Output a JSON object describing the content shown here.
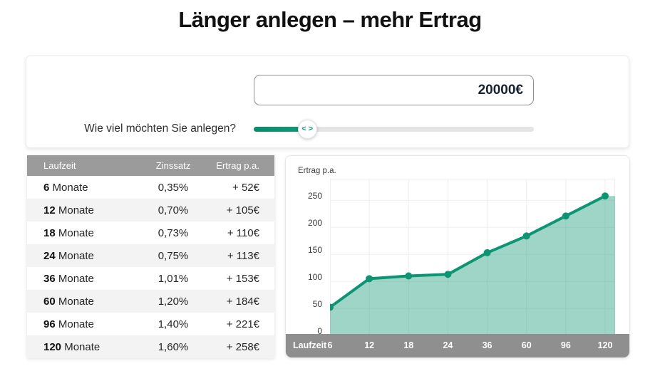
{
  "title": "Länger anlegen – mehr Ertrag",
  "accent_color": "#0d9573",
  "investment": {
    "amount_value": "20000€",
    "question_label": "Wie viel möchten Sie anlegen?",
    "slider": {
      "fill_percent": 18,
      "thumb_percent": 19,
      "left_glyph": "<",
      "right_glyph": ">"
    }
  },
  "table": {
    "headers": [
      "Laufzeit",
      "Zinssatz",
      "Ertrag p.a."
    ],
    "unit": "Monate",
    "rows": [
      {
        "months": "6",
        "zinssatz": "0,35%",
        "ertrag": "+ 52€"
      },
      {
        "months": "12",
        "zinssatz": "0,70%",
        "ertrag": "+ 105€"
      },
      {
        "months": "18",
        "zinssatz": "0,73%",
        "ertrag": "+ 110€"
      },
      {
        "months": "24",
        "zinssatz": "0,75%",
        "ertrag": "+ 113€"
      },
      {
        "months": "36",
        "zinssatz": "1,01%",
        "ertrag": "+ 153€"
      },
      {
        "months": "60",
        "zinssatz": "1,20%",
        "ertrag": "+ 184€"
      },
      {
        "months": "96",
        "zinssatz": "1,40%",
        "ertrag": "+ 221€"
      },
      {
        "months": "120",
        "zinssatz": "1,60%",
        "ertrag": "+ 258€"
      }
    ]
  },
  "chart_data": {
    "type": "area",
    "title": "Ertrag p.a.",
    "xlabel": "Laufzeit",
    "ylabel": "Ertrag p.a.",
    "categories": [
      6,
      12,
      18,
      24,
      36,
      60,
      96,
      120
    ],
    "values": [
      52,
      105,
      110,
      113,
      153,
      184,
      221,
      258
    ],
    "yticks": [
      0,
      50,
      100,
      150,
      200,
      250
    ],
    "ylim": [
      0,
      290
    ],
    "grid": true,
    "legend": "none",
    "line_color": "#0d9573",
    "fill_color": "rgba(13,149,115,0.40)",
    "grid_color": "#efefef",
    "axis_bar_color": "#8f8f8f"
  }
}
